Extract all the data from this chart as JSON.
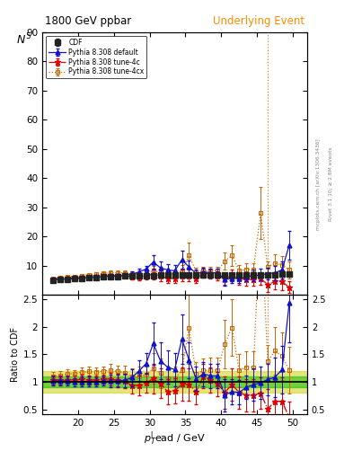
{
  "title_left": "1800 GeV ppbar",
  "title_right": "Underlying Event",
  "ylabel_main": "N",
  "ylabel_main_sup": "5",
  "ylabel_ratio": "Ratio to CDF",
  "right_label_top": "Rivet 3.1.10; ≥ 2.8M events",
  "right_label_bot": "mcplots.cern.ch [arXiv:1306.3436]",
  "xlim": [
    15,
    52
  ],
  "ylim_main": [
    0,
    90
  ],
  "ylim_ratio": [
    0.42,
    2.58
  ],
  "vline_x": 46.5,
  "xticks": [
    20,
    25,
    30,
    35,
    40,
    45,
    50
  ],
  "yticks_main": [
    10,
    20,
    30,
    40,
    50,
    60,
    70,
    80,
    90
  ],
  "yticks_ratio": [
    0.5,
    1.0,
    1.5,
    2.0,
    2.5
  ],
  "cdf_x": [
    16.5,
    17.5,
    18.5,
    19.5,
    20.5,
    21.5,
    22.5,
    23.5,
    24.5,
    25.5,
    26.5,
    27.5,
    28.5,
    29.5,
    30.5,
    31.5,
    32.5,
    33.5,
    34.5,
    35.5,
    36.5,
    37.5,
    38.5,
    39.5,
    40.5,
    41.5,
    42.5,
    43.5,
    44.5,
    45.5,
    46.5,
    47.5,
    48.5,
    49.5
  ],
  "cdf_y": [
    5.0,
    5.2,
    5.3,
    5.5,
    5.6,
    5.8,
    6.0,
    6.1,
    6.2,
    6.3,
    6.4,
    6.5,
    6.5,
    6.6,
    6.6,
    6.65,
    6.7,
    6.7,
    6.75,
    6.8,
    6.8,
    6.8,
    6.75,
    6.75,
    6.8,
    6.8,
    6.8,
    6.85,
    6.85,
    6.9,
    6.9,
    6.9,
    6.95,
    7.0
  ],
  "cdf_yerr": [
    0.25,
    0.25,
    0.25,
    0.25,
    0.25,
    0.25,
    0.25,
    0.25,
    0.25,
    0.25,
    0.25,
    0.25,
    0.25,
    0.25,
    0.25,
    0.25,
    0.25,
    0.25,
    0.25,
    0.25,
    0.25,
    0.25,
    0.25,
    0.25,
    0.25,
    0.25,
    0.25,
    0.25,
    0.25,
    0.25,
    0.25,
    0.25,
    0.25,
    0.25
  ],
  "default_x": [
    16.5,
    17.5,
    18.5,
    19.5,
    20.5,
    21.5,
    22.5,
    23.5,
    24.5,
    25.5,
    26.5,
    27.5,
    28.5,
    29.5,
    30.5,
    31.5,
    32.5,
    33.5,
    34.5,
    35.5,
    36.5,
    37.5,
    38.5,
    39.5,
    40.5,
    41.5,
    42.5,
    43.5,
    44.5,
    45.5,
    46.5,
    47.5,
    48.5,
    49.5
  ],
  "default_y": [
    5.1,
    5.3,
    5.4,
    5.5,
    5.65,
    5.85,
    6.0,
    6.2,
    6.3,
    6.4,
    6.6,
    7.0,
    7.8,
    8.8,
    11.2,
    9.2,
    8.5,
    8.2,
    12.0,
    9.5,
    7.2,
    7.8,
    7.5,
    7.5,
    5.2,
    5.6,
    5.5,
    6.2,
    6.5,
    6.8,
    7.2,
    7.5,
    8.5,
    17.0
  ],
  "default_yerr": [
    0.4,
    0.4,
    0.4,
    0.4,
    0.5,
    0.5,
    0.5,
    0.5,
    0.7,
    0.7,
    0.8,
    1.0,
    1.2,
    1.2,
    2.5,
    2.2,
    2.0,
    2.0,
    3.0,
    2.2,
    1.5,
    1.5,
    1.5,
    1.5,
    2.0,
    1.5,
    1.5,
    1.5,
    2.0,
    2.0,
    2.0,
    2.5,
    3.0,
    5.0
  ],
  "tune4c_x": [
    16.5,
    17.5,
    18.5,
    19.5,
    20.5,
    21.5,
    22.5,
    23.5,
    24.5,
    25.5,
    26.5,
    27.5,
    28.5,
    29.5,
    30.5,
    31.5,
    32.5,
    33.5,
    34.5,
    35.5,
    36.5,
    37.5,
    38.5,
    39.5,
    40.5,
    41.5,
    42.5,
    43.5,
    44.5,
    45.5,
    46.5,
    47.5,
    48.5,
    49.5
  ],
  "tune4c_y": [
    5.2,
    5.4,
    5.5,
    5.7,
    5.85,
    6.0,
    6.2,
    6.4,
    6.5,
    6.5,
    6.5,
    6.1,
    6.1,
    6.5,
    7.0,
    6.5,
    5.5,
    5.6,
    6.5,
    6.5,
    5.6,
    7.5,
    7.0,
    6.5,
    5.5,
    6.5,
    5.5,
    5.2,
    5.2,
    5.5,
    3.5,
    4.5,
    4.5,
    2.5
  ],
  "tune4c_yerr": [
    0.4,
    0.4,
    0.4,
    0.4,
    0.5,
    0.5,
    0.5,
    0.5,
    0.7,
    0.7,
    0.8,
    1.0,
    1.2,
    1.2,
    1.8,
    1.8,
    1.5,
    1.5,
    2.0,
    2.0,
    1.5,
    1.5,
    1.5,
    1.5,
    2.0,
    2.0,
    2.0,
    2.0,
    2.0,
    2.0,
    2.5,
    2.5,
    3.0,
    2.0
  ],
  "tune4cx_x": [
    16.5,
    17.5,
    18.5,
    19.5,
    20.5,
    21.5,
    22.5,
    23.5,
    24.5,
    25.5,
    26.5,
    27.5,
    28.5,
    29.5,
    30.5,
    31.5,
    32.5,
    33.5,
    34.5,
    35.5,
    36.5,
    37.5,
    38.5,
    39.5,
    40.5,
    41.5,
    42.5,
    43.5,
    44.5,
    45.5,
    46.5,
    47.5,
    48.5,
    49.5
  ],
  "tune4cx_y": [
    5.5,
    5.8,
    6.1,
    6.3,
    6.6,
    6.9,
    7.1,
    7.3,
    7.5,
    7.5,
    7.5,
    7.1,
    7.1,
    7.5,
    8.2,
    7.7,
    7.1,
    7.1,
    8.2,
    13.5,
    7.8,
    8.2,
    8.2,
    8.2,
    11.5,
    13.5,
    8.2,
    8.7,
    8.7,
    28.0,
    9.5,
    10.8,
    10.2,
    8.5
  ],
  "tune4cx_yerr": [
    0.4,
    0.4,
    0.4,
    0.4,
    0.5,
    0.5,
    0.5,
    0.5,
    0.7,
    0.7,
    0.8,
    1.0,
    1.2,
    1.2,
    1.8,
    1.8,
    1.5,
    1.5,
    2.0,
    4.5,
    1.5,
    1.5,
    1.5,
    1.5,
    3.0,
    3.5,
    2.0,
    2.0,
    2.0,
    9.0,
    2.0,
    3.0,
    3.0,
    3.0
  ],
  "green_band": [
    0.9,
    1.1
  ],
  "yellow_band": [
    0.8,
    1.2
  ],
  "cdf_color": "#222222",
  "default_color": "#1111cc",
  "tune4c_color": "#dd0000",
  "tune4cx_color": "#cc6600",
  "green_color": "#00bb00",
  "yellow_color": "#cccc00"
}
